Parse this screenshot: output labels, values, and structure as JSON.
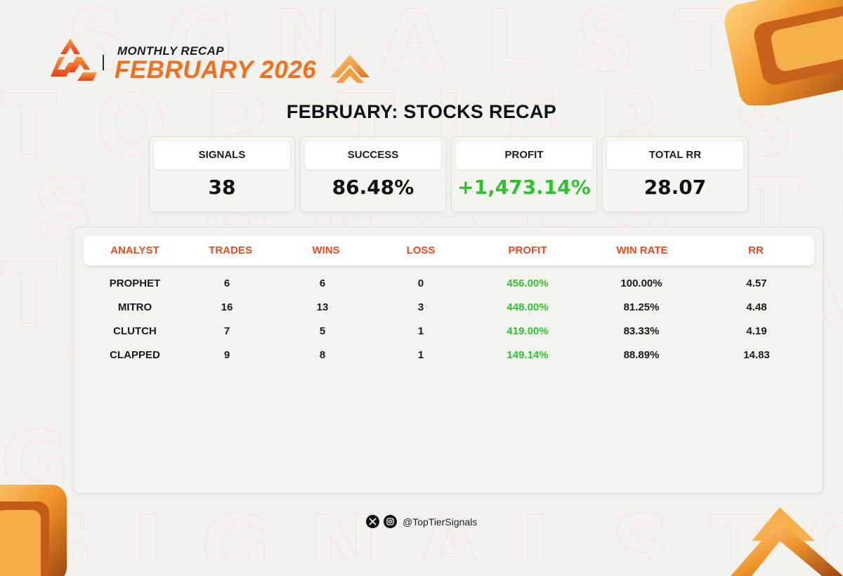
{
  "header": {
    "recap_label": "MONTHLY RECAP",
    "month_label": "FEBRUARY 2026",
    "accent_color": "#f07020"
  },
  "title": "FEBRUARY: STOCKS RECAP",
  "stats": [
    {
      "label": "SIGNALS",
      "value": "38"
    },
    {
      "label": "SUCCESS",
      "value": "86.48%"
    },
    {
      "label": "PROFIT",
      "value": "+1,473.14%",
      "color": "#2fc22f"
    },
    {
      "label": "TOTAL RR",
      "value": "28.07"
    }
  ],
  "table": {
    "headers": [
      "ANALYST",
      "TRADES",
      "WINS",
      "LOSS",
      "PROFIT",
      "WIN RATE",
      "RR"
    ],
    "header_color": "#ec4a1a",
    "rows": [
      [
        "PROPHET",
        "6",
        "6",
        "0",
        "456.00%",
        "100.00%",
        "4.57"
      ],
      [
        "MITRO",
        "16",
        "13",
        "3",
        "448.00%",
        "81.25%",
        "4.48"
      ],
      [
        "CLUTCH",
        "7",
        "5",
        "1",
        "419.00%",
        "83.33%",
        "4.19"
      ],
      [
        "CLAPPED",
        "9",
        "8",
        "1",
        "149.14%",
        "88.89%",
        "14.83"
      ]
    ]
  },
  "footer": {
    "handle": "@TopTierSignals",
    "icons": [
      "x-icon",
      "instagram-icon"
    ]
  },
  "colors": {
    "profit_green": "#2fc22f",
    "background": "#f3f2ee"
  }
}
